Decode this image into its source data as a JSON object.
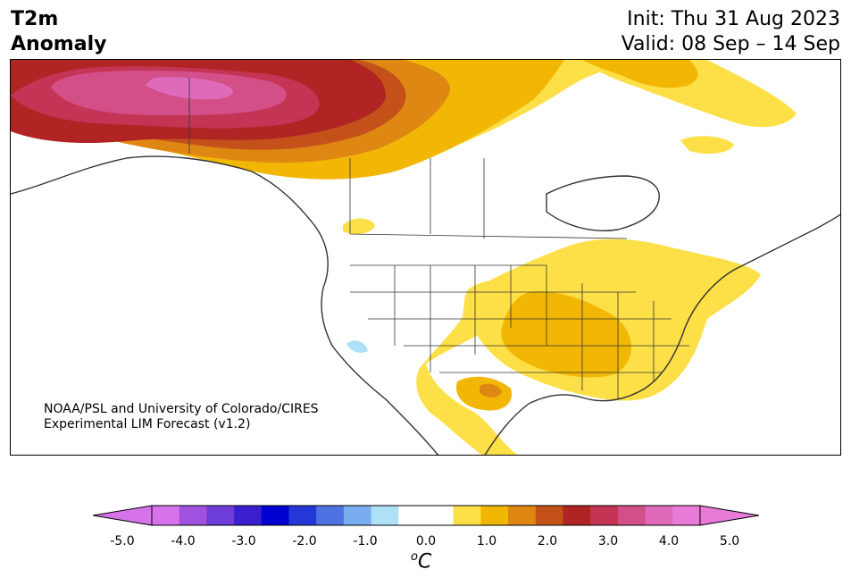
{
  "title": {
    "line1": "T2m",
    "line2": "Anomaly"
  },
  "dates": {
    "init": "Init: Thu 31 Aug 2023",
    "valid": "Valid: 08 Sep – 14 Sep"
  },
  "credit": {
    "line1": "NOAA/PSL and University of Colorado/CIRES",
    "line2": "Experimental LIM Forecast (v1.2)"
  },
  "colorbar": {
    "units_main": "C",
    "units_sup": "o",
    "tick_labels": [
      "-5.0",
      "-4.0",
      "-3.0",
      "-2.0",
      "-1.0",
      "0.0",
      "1.0",
      "2.0",
      "3.0",
      "4.0",
      "5.0"
    ],
    "colors": [
      "#d673ea",
      "#a052de",
      "#6e3cd8",
      "#3a1fd0",
      "#0000d0",
      "#2438d8",
      "#4f72e2",
      "#78aef0",
      "#aee0f8",
      "#ffffff",
      "#ffffff",
      "#fde047",
      "#f2b705",
      "#de8712",
      "#c4501a",
      "#b02424",
      "#c43455",
      "#d24f88",
      "#e06aba",
      "#e87ad8"
    ],
    "extend_colors": {
      "low": "#d673ea",
      "high": "#e87ad8"
    }
  },
  "palette": {
    "yellow": "#fde047",
    "gold": "#f2b705",
    "orange": "#de8712",
    "dark_orange": "#c4501a",
    "red": "#b02424",
    "crimson": "#c43455",
    "pink": "#d24f88",
    "light_blue": "#aee0f8"
  }
}
